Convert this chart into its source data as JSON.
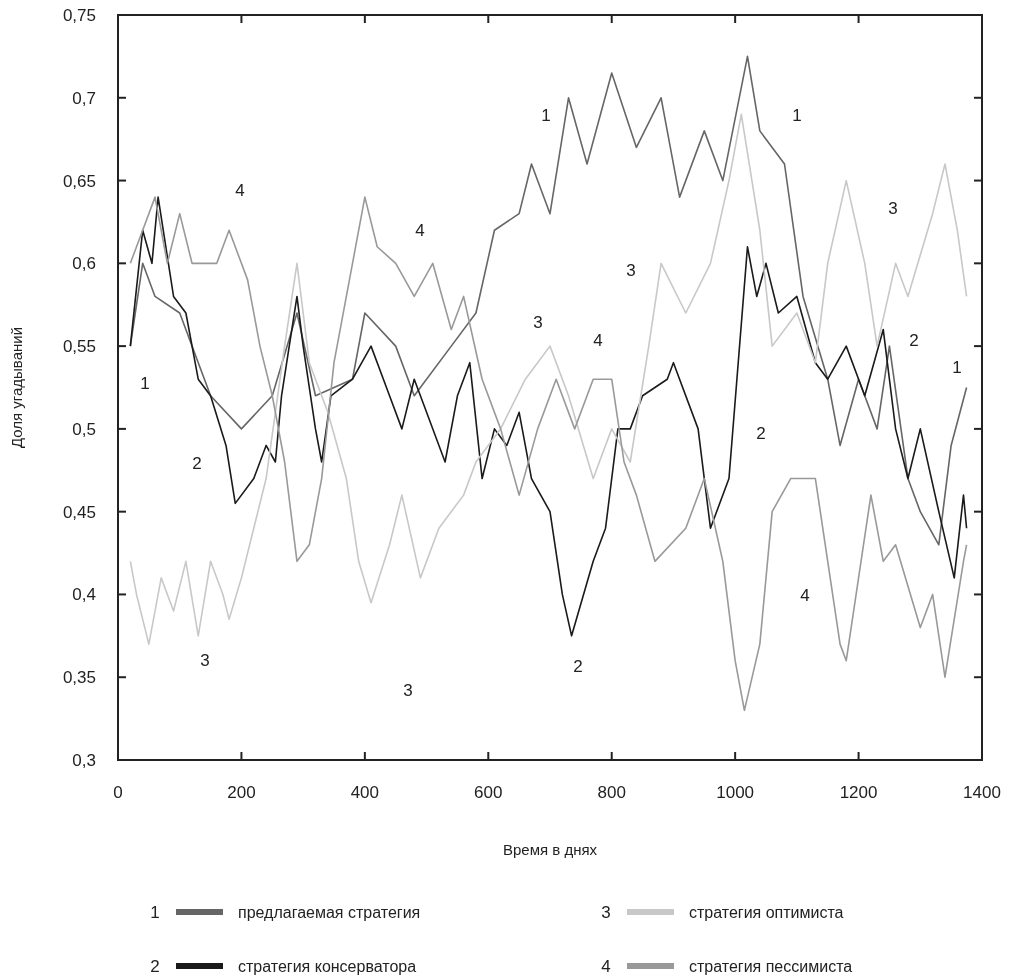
{
  "chart_data": {
    "type": "line",
    "xlabel": "Время в днях",
    "ylabel": "Доля угадываний",
    "xlim": [
      0,
      1400
    ],
    "xticks": [
      0,
      200,
      400,
      600,
      800,
      1000,
      1200,
      1400
    ],
    "ylim": [
      0.3,
      0.75
    ],
    "yticks": [
      {
        "value": 0.3,
        "label": "0,3"
      },
      {
        "value": 0.35,
        "label": "0,35"
      },
      {
        "value": 0.4,
        "label": "0,4"
      },
      {
        "value": 0.45,
        "label": "0,45"
      },
      {
        "value": 0.5,
        "label": "0,5"
      },
      {
        "value": 0.55,
        "label": "0,55"
      },
      {
        "value": 0.6,
        "label": "0,6"
      },
      {
        "value": 0.65,
        "label": "0,65"
      },
      {
        "value": 0.7,
        "label": "0,7"
      },
      {
        "value": 0.75,
        "label": "0,75"
      }
    ],
    "legend": "bottom",
    "series": [
      {
        "name": "предлагаемая стратегия",
        "color": "#666666",
        "x": [
          20,
          40,
          60,
          100,
          150,
          200,
          250,
          290,
          320,
          380,
          400,
          450,
          480,
          540,
          580,
          610,
          650,
          670,
          700,
          730,
          760,
          800,
          840,
          880,
          910,
          950,
          980,
          1020,
          1040,
          1080,
          1110,
          1150,
          1170,
          1200,
          1230,
          1250,
          1280,
          1300,
          1330,
          1350,
          1375
        ],
        "values": [
          0.55,
          0.6,
          0.58,
          0.57,
          0.52,
          0.5,
          0.52,
          0.57,
          0.52,
          0.53,
          0.57,
          0.55,
          0.52,
          0.55,
          0.57,
          0.62,
          0.63,
          0.66,
          0.63,
          0.7,
          0.66,
          0.715,
          0.67,
          0.7,
          0.64,
          0.68,
          0.65,
          0.725,
          0.68,
          0.66,
          0.58,
          0.53,
          0.49,
          0.53,
          0.5,
          0.55,
          0.47,
          0.45,
          0.43,
          0.49,
          0.525
        ]
      },
      {
        "name": "стратегия консерватора",
        "color": "#1a1a1a",
        "x": [
          20,
          40,
          55,
          65,
          90,
          110,
          130,
          150,
          175,
          190,
          220,
          240,
          255,
          265,
          290,
          300,
          320,
          330,
          345,
          380,
          410,
          440,
          460,
          480,
          500,
          530,
          550,
          570,
          590,
          610,
          630,
          650,
          670,
          700,
          720,
          735,
          770,
          790,
          810,
          830,
          850,
          890,
          900,
          940,
          960,
          990,
          1020,
          1035,
          1050,
          1070,
          1100,
          1130,
          1150,
          1180,
          1210,
          1240,
          1260,
          1280,
          1300,
          1330,
          1355,
          1370,
          1375
        ],
        "values": [
          0.55,
          0.62,
          0.6,
          0.64,
          0.58,
          0.57,
          0.53,
          0.52,
          0.49,
          0.455,
          0.47,
          0.49,
          0.48,
          0.52,
          0.58,
          0.55,
          0.5,
          0.48,
          0.52,
          0.53,
          0.55,
          0.52,
          0.5,
          0.53,
          0.51,
          0.48,
          0.52,
          0.54,
          0.47,
          0.5,
          0.49,
          0.51,
          0.47,
          0.45,
          0.4,
          0.375,
          0.42,
          0.44,
          0.5,
          0.5,
          0.52,
          0.53,
          0.54,
          0.5,
          0.44,
          0.47,
          0.61,
          0.58,
          0.6,
          0.57,
          0.58,
          0.54,
          0.53,
          0.55,
          0.52,
          0.56,
          0.5,
          0.47,
          0.5,
          0.45,
          0.41,
          0.46,
          0.44
        ]
      },
      {
        "name": "стратегия оптимиста",
        "color": "#c8c8c8",
        "x": [
          20,
          30,
          50,
          70,
          90,
          110,
          130,
          150,
          170,
          180,
          200,
          220,
          240,
          270,
          290,
          310,
          340,
          370,
          390,
          410,
          440,
          460,
          490,
          520,
          560,
          580,
          620,
          660,
          700,
          730,
          770,
          800,
          830,
          860,
          880,
          920,
          960,
          990,
          1010,
          1040,
          1060,
          1100,
          1130,
          1150,
          1180,
          1210,
          1230,
          1260,
          1280,
          1320,
          1340,
          1360,
          1375
        ],
        "values": [
          0.42,
          0.4,
          0.37,
          0.41,
          0.39,
          0.42,
          0.375,
          0.42,
          0.4,
          0.385,
          0.41,
          0.44,
          0.47,
          0.55,
          0.6,
          0.54,
          0.51,
          0.47,
          0.42,
          0.395,
          0.43,
          0.46,
          0.41,
          0.44,
          0.46,
          0.48,
          0.5,
          0.53,
          0.55,
          0.52,
          0.47,
          0.5,
          0.48,
          0.55,
          0.6,
          0.57,
          0.6,
          0.65,
          0.69,
          0.62,
          0.55,
          0.57,
          0.54,
          0.6,
          0.65,
          0.6,
          0.55,
          0.6,
          0.58,
          0.63,
          0.66,
          0.62,
          0.58
        ]
      },
      {
        "name": "стратегия пессимиста",
        "color": "#999999",
        "x": [
          20,
          40,
          60,
          80,
          100,
          120,
          160,
          180,
          210,
          230,
          250,
          270,
          290,
          310,
          330,
          350,
          380,
          400,
          420,
          450,
          480,
          510,
          540,
          560,
          590,
          620,
          650,
          680,
          710,
          740,
          770,
          800,
          820,
          840,
          870,
          920,
          950,
          980,
          1000,
          1015,
          1040,
          1060,
          1090,
          1130,
          1150,
          1170,
          1180,
          1200,
          1220,
          1240,
          1260,
          1300,
          1320,
          1340,
          1370,
          1375
        ],
        "values": [
          0.6,
          0.62,
          0.64,
          0.6,
          0.63,
          0.6,
          0.6,
          0.62,
          0.59,
          0.55,
          0.52,
          0.48,
          0.42,
          0.43,
          0.47,
          0.54,
          0.6,
          0.64,
          0.61,
          0.6,
          0.58,
          0.6,
          0.56,
          0.58,
          0.53,
          0.5,
          0.46,
          0.5,
          0.53,
          0.5,
          0.53,
          0.53,
          0.48,
          0.46,
          0.42,
          0.44,
          0.47,
          0.42,
          0.36,
          0.33,
          0.37,
          0.45,
          0.47,
          0.47,
          0.42,
          0.37,
          0.36,
          0.41,
          0.46,
          0.42,
          0.43,
          0.38,
          0.4,
          0.35,
          0.42,
          0.43
        ]
      }
    ],
    "annotations": [
      "1",
      "2",
      "3",
      "4",
      "4",
      "3",
      "1",
      "3",
      "4",
      "2",
      "3",
      "1",
      "2",
      "3",
      "2",
      "1",
      "4"
    ]
  }
}
